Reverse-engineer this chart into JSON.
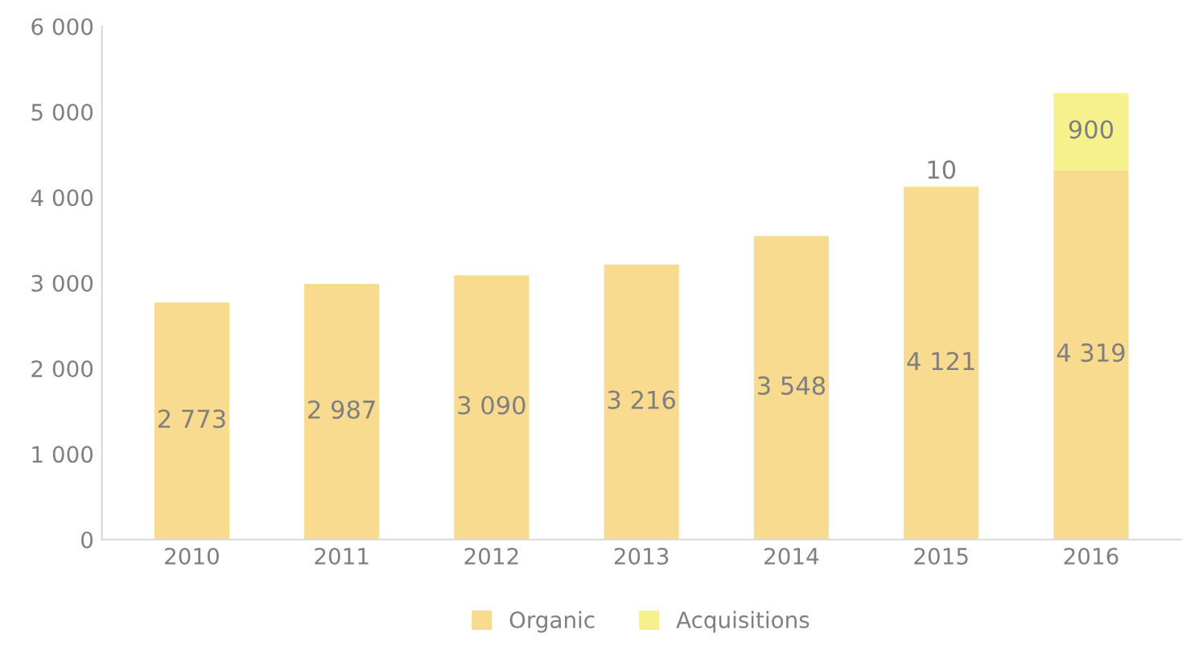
{
  "chart_data": {
    "type": "bar",
    "stacked": true,
    "categories": [
      "2010",
      "2011",
      "2012",
      "2013",
      "2014",
      "2015",
      "2016"
    ],
    "series": [
      {
        "name": "Organic",
        "color": "#f8db8e",
        "values": [
          2773,
          2987,
          3090,
          3216,
          3548,
          4121,
          4319
        ],
        "value_labels": [
          "2 773",
          "2 987",
          "3 090",
          "3 216",
          "3 548",
          "4 121",
          "4 319"
        ]
      },
      {
        "name": "Acquisitions",
        "color": "#f6f18c",
        "values": [
          null,
          null,
          null,
          null,
          null,
          10,
          900
        ],
        "value_labels": [
          null,
          null,
          null,
          null,
          null,
          "10",
          "900"
        ]
      }
    ],
    "ylim": [
      0,
      6000
    ],
    "yticks": [
      0,
      {
        "value": 1000,
        "label": "1 000"
      },
      {
        "value": 2000,
        "label": "2 000"
      },
      {
        "value": 3000,
        "label": "3 000"
      },
      {
        "value": 4000,
        "label": "4 000"
      },
      {
        "value": 5000,
        "label": "5 000"
      },
      {
        "value": 6000,
        "label": "6 000"
      }
    ],
    "grid": false,
    "legend": "bottom"
  }
}
